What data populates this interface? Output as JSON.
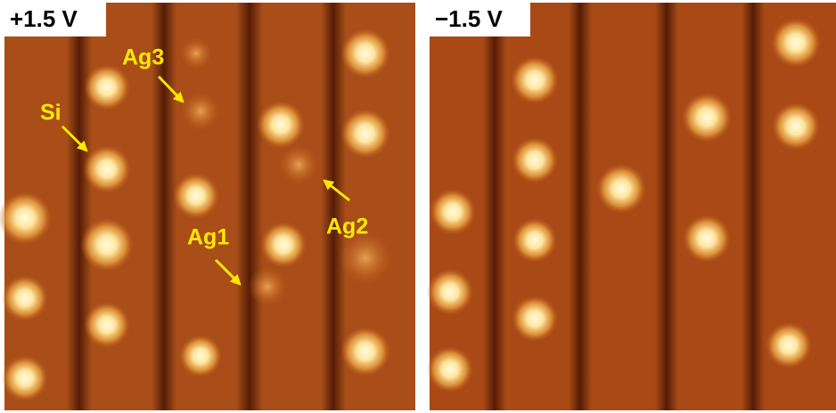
{
  "panels": [
    {
      "label": "+1.5 V",
      "annotations": [
        {
          "label": "Ag3"
        },
        {
          "label": "Si"
        },
        {
          "label": "Ag1"
        },
        {
          "label": "Ag2"
        }
      ]
    },
    {
      "label": "−1.5 V"
    }
  ]
}
